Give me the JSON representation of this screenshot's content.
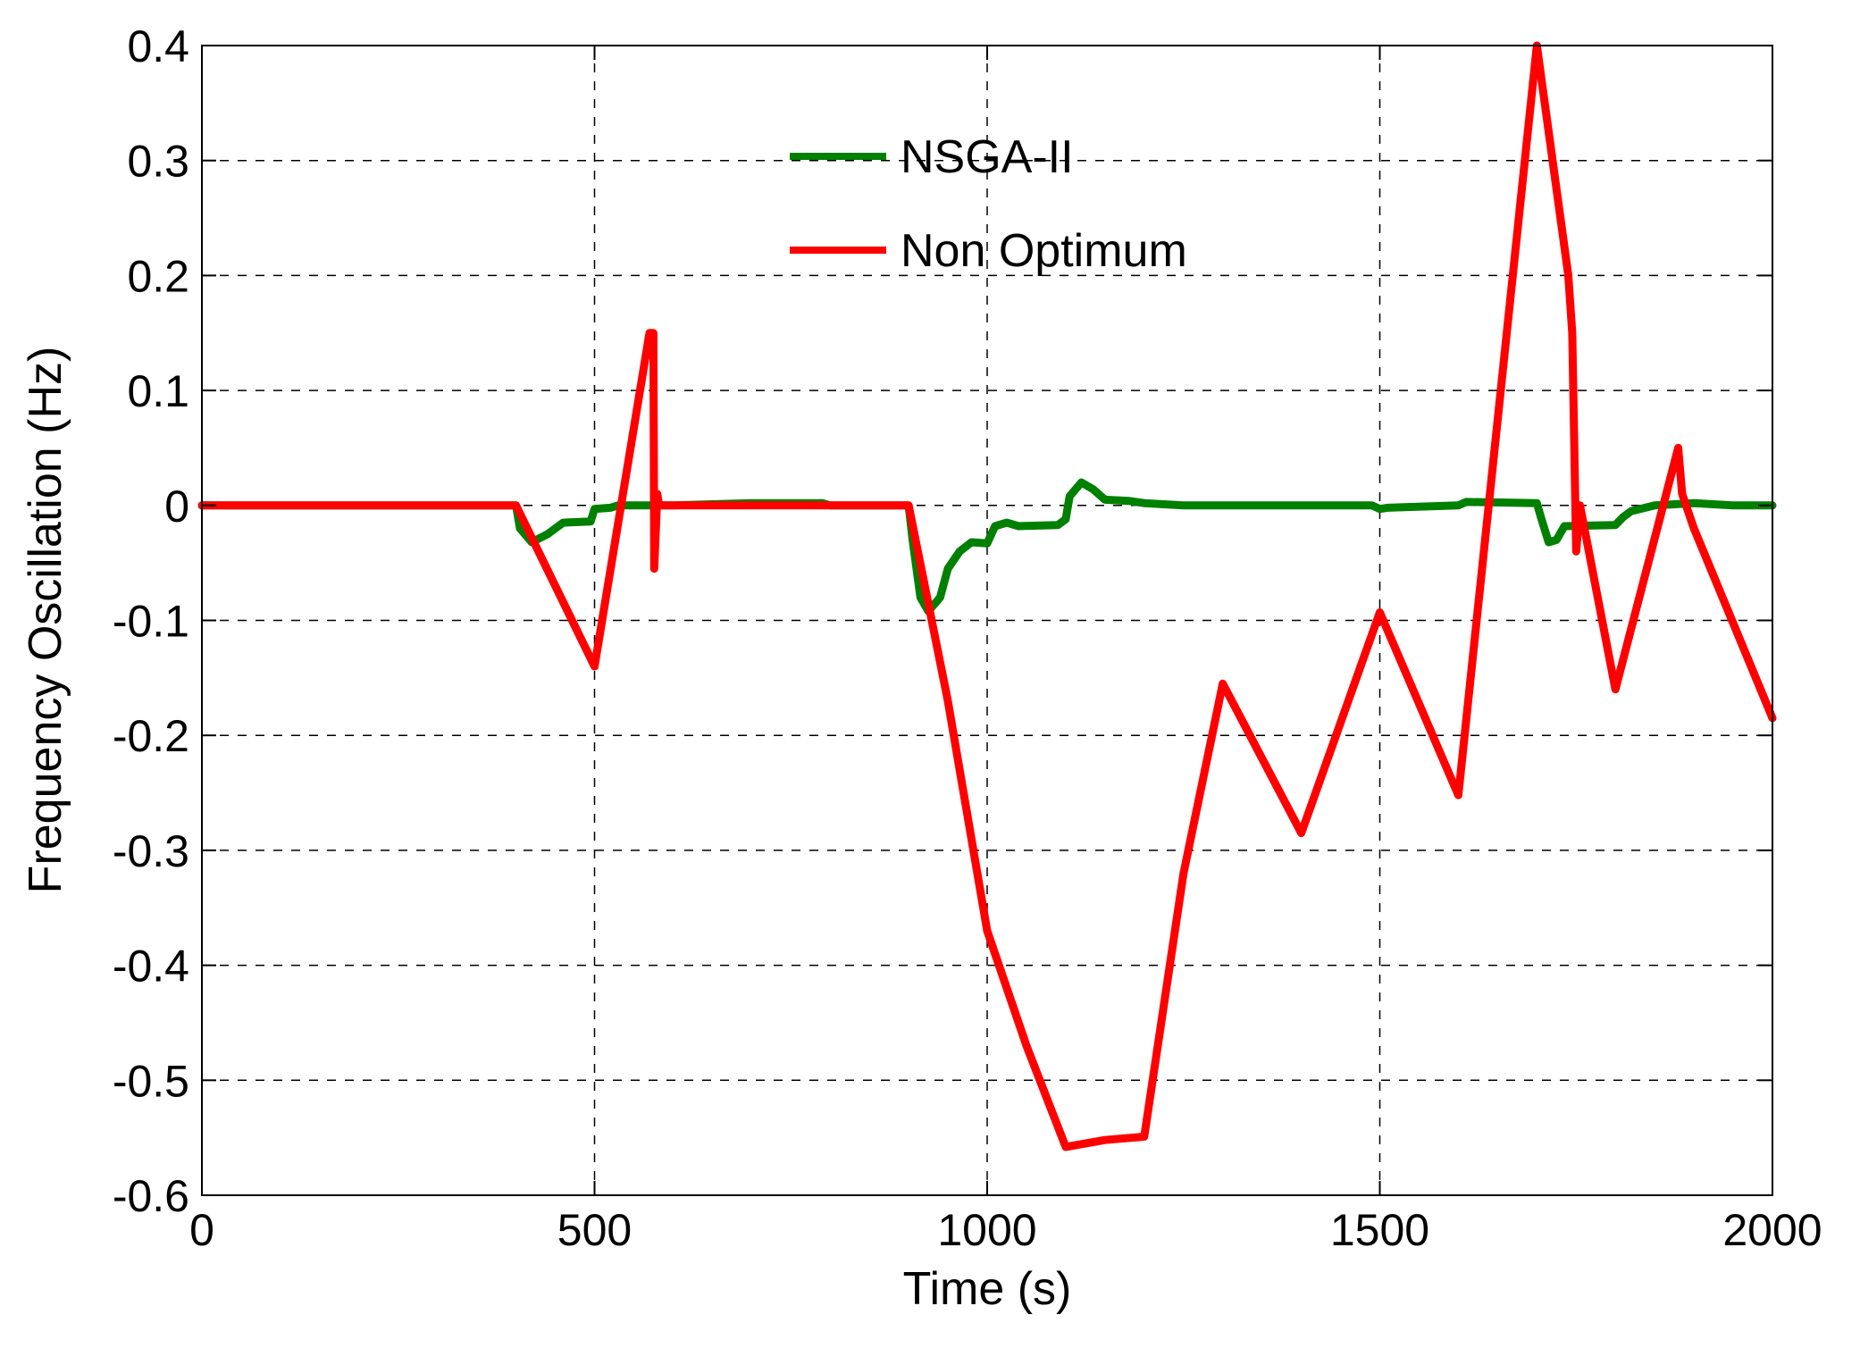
{
  "chart_data": {
    "type": "line",
    "xlabel": "Time (s)",
    "ylabel": "Frequency Oscillation (Hz)",
    "xlim": [
      0,
      2000
    ],
    "ylim": [
      -0.6,
      0.4
    ],
    "xticks": [
      0,
      500,
      1000,
      1500,
      2000
    ],
    "xtick_labels": [
      "0",
      "500",
      "1000",
      "1500",
      "2000"
    ],
    "yticks": [
      -0.6,
      -0.5,
      -0.4,
      -0.3,
      -0.2,
      -0.1,
      0,
      0.1,
      0.2,
      0.3,
      0.4
    ],
    "ytick_labels": [
      "-0.6",
      "-0.5",
      "-0.4",
      "-0.3",
      "-0.2",
      "-0.1",
      "0",
      "0.1",
      "0.2",
      "0.3",
      "0.4"
    ],
    "grid": true,
    "legend_position": "top-center",
    "series": [
      {
        "name": "NSGA-II",
        "color": "#008000",
        "points": [
          [
            0,
            0
          ],
          [
            400,
            0
          ],
          [
            405,
            -0.02
          ],
          [
            420,
            -0.032
          ],
          [
            440,
            -0.025
          ],
          [
            460,
            -0.015
          ],
          [
            495,
            -0.014
          ],
          [
            500,
            -0.003
          ],
          [
            520,
            -0.002
          ],
          [
            530,
            0
          ],
          [
            600,
            0
          ],
          [
            700,
            0.002
          ],
          [
            790,
            0.002
          ],
          [
            800,
            0
          ],
          [
            900,
            0
          ],
          [
            905,
            -0.03
          ],
          [
            915,
            -0.08
          ],
          [
            925,
            -0.092
          ],
          [
            940,
            -0.08
          ],
          [
            950,
            -0.055
          ],
          [
            965,
            -0.04
          ],
          [
            980,
            -0.032
          ],
          [
            1000,
            -0.033
          ],
          [
            1010,
            -0.018
          ],
          [
            1025,
            -0.015
          ],
          [
            1040,
            -0.018
          ],
          [
            1090,
            -0.017
          ],
          [
            1100,
            -0.012
          ],
          [
            1105,
            0.008
          ],
          [
            1120,
            0.02
          ],
          [
            1135,
            0.014
          ],
          [
            1150,
            0.005
          ],
          [
            1180,
            0.004
          ],
          [
            1200,
            0.002
          ],
          [
            1250,
            0
          ],
          [
            1490,
            0
          ],
          [
            1500,
            -0.003
          ],
          [
            1510,
            -0.002
          ],
          [
            1600,
            0
          ],
          [
            1610,
            0.003
          ],
          [
            1700,
            0.002
          ],
          [
            1705,
            -0.01
          ],
          [
            1715,
            -0.032
          ],
          [
            1725,
            -0.03
          ],
          [
            1735,
            -0.018
          ],
          [
            1800,
            -0.017
          ],
          [
            1810,
            -0.01
          ],
          [
            1820,
            -0.005
          ],
          [
            1850,
            0
          ],
          [
            1900,
            0.002
          ],
          [
            1950,
            0
          ],
          [
            2000,
            0
          ]
        ]
      },
      {
        "name": "Non Optimum",
        "color": "#ff0000",
        "points": [
          [
            0,
            0
          ],
          [
            400,
            0
          ],
          [
            500,
            -0.14
          ],
          [
            570,
            0.15
          ],
          [
            575,
            0.15
          ],
          [
            576,
            -0.055
          ],
          [
            580,
            0.01
          ],
          [
            582,
            0
          ],
          [
            600,
            0
          ],
          [
            900,
            0
          ],
          [
            950,
            -0.17
          ],
          [
            1000,
            -0.37
          ],
          [
            1050,
            -0.47
          ],
          [
            1100,
            -0.558
          ],
          [
            1150,
            -0.552
          ],
          [
            1200,
            -0.549
          ],
          [
            1250,
            -0.32
          ],
          [
            1300,
            -0.155
          ],
          [
            1400,
            -0.285
          ],
          [
            1500,
            -0.093
          ],
          [
            1600,
            -0.252
          ],
          [
            1700,
            0.4
          ],
          [
            1740,
            0.2
          ],
          [
            1745,
            0.15
          ],
          [
            1750,
            -0.04
          ],
          [
            1755,
            0
          ],
          [
            1800,
            -0.16
          ],
          [
            1880,
            0.05
          ],
          [
            1885,
            0.01
          ],
          [
            1900,
            -0.02
          ],
          [
            2000,
            -0.185
          ]
        ]
      }
    ]
  }
}
